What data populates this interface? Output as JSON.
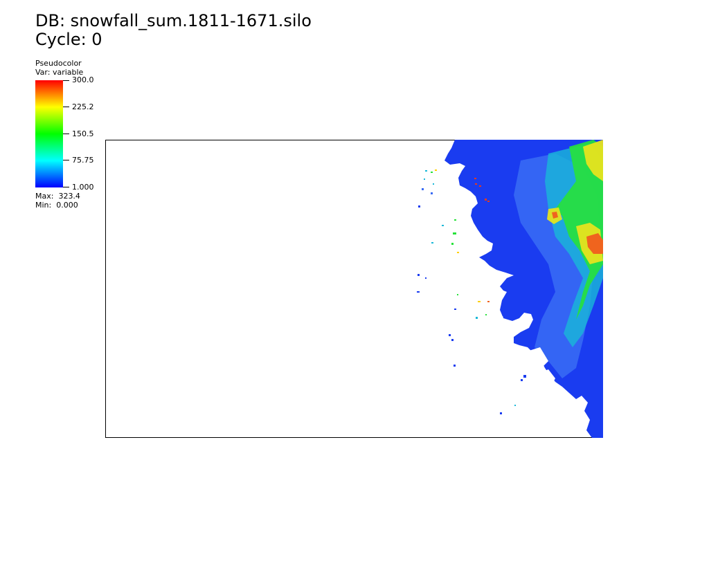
{
  "header": {
    "db_line": "DB: snowfall_sum.1811-1671.silo",
    "cycle_line": "Cycle: 0"
  },
  "legend": {
    "plot_type": "Pseudocolor",
    "var_line": "Var: variable",
    "ticks": [
      "300.0",
      "225.2",
      "150.5",
      "75.75",
      "1.000"
    ],
    "max_line": "Max:  323.4",
    "min_line": "Min:  0.000",
    "colormap": [
      "#0000ff",
      "#00ffff",
      "#00ff00",
      "#ffff00",
      "#ff0000"
    ]
  },
  "plot": {
    "field_name": "snowfall_sum",
    "palette": {
      "low": "#1a3cf0",
      "mid_low": "#3a6cf4",
      "mid": "#19b8d8",
      "high": "#27e23a",
      "very_high": "#e6e31e",
      "peak": "#f0641e"
    }
  }
}
